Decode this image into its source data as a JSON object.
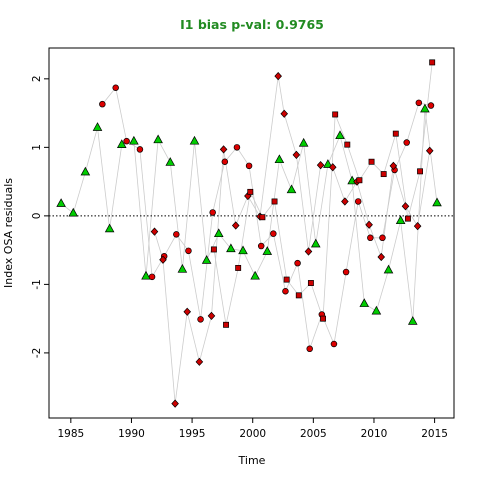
{
  "chart_data": {
    "type": "scatter",
    "title": "I1 bias p-val: 0.9765",
    "title_color": "#228B22",
    "xlabel": "Time",
    "ylabel": "Index OSA residuals",
    "xlim": [
      1983.2,
      2016.6
    ],
    "ylim": [
      -2.95,
      2.45
    ],
    "x_ticks": [
      1985,
      1990,
      1995,
      2000,
      2005,
      2010,
      2015
    ],
    "y_ticks": [
      -2,
      -1,
      0,
      1,
      2
    ],
    "reference_line": {
      "y": 0,
      "style": "dotted"
    },
    "connector_color": "#cccccc",
    "grid": false,
    "legend": "none",
    "series": [
      {
        "marker": "triangle",
        "fill": "#00cc00",
        "points": [
          [
            1984.2,
            0.18
          ],
          [
            1985.2,
            0.04
          ],
          [
            1986.2,
            0.64
          ],
          [
            1987.2,
            1.29
          ],
          [
            1988.2,
            -0.19
          ],
          [
            1989.2,
            1.04
          ],
          [
            1990.2,
            1.09
          ],
          [
            1991.2,
            -0.88
          ],
          [
            1992.2,
            1.11
          ],
          [
            1993.2,
            0.78
          ],
          [
            1994.2,
            -0.78
          ],
          [
            1995.2,
            1.09
          ],
          [
            1996.2,
            -0.65
          ],
          [
            1997.2,
            -0.26
          ],
          [
            1998.2,
            -0.48
          ],
          [
            1999.2,
            -0.51
          ],
          [
            2000.2,
            -0.88
          ],
          [
            2001.2,
            -0.52
          ],
          [
            2002.2,
            0.82
          ],
          [
            2003.2,
            0.38
          ],
          [
            2004.2,
            1.06
          ],
          [
            2005.2,
            -0.41
          ],
          [
            2006.2,
            0.75
          ],
          [
            2007.2,
            1.17
          ],
          [
            2008.2,
            0.51
          ],
          [
            2009.2,
            -1.28
          ],
          [
            2010.2,
            -1.39
          ],
          [
            2011.2,
            -0.79
          ],
          [
            2012.2,
            -0.07
          ],
          [
            2013.2,
            -1.54
          ],
          [
            2014.2,
            1.56
          ],
          [
            2015.2,
            0.19
          ]
        ]
      },
      {
        "marker": "circle",
        "fill": "#dd0000",
        "points": [
          [
            1987.6,
            1.63
          ],
          [
            1988.7,
            1.87
          ],
          [
            1989.6,
            1.09
          ],
          [
            1990.7,
            0.97
          ],
          [
            1991.7,
            -0.89
          ],
          [
            1992.7,
            -0.59
          ],
          [
            1993.7,
            -0.27
          ],
          [
            1994.7,
            -0.51
          ],
          [
            1995.7,
            -1.51
          ],
          [
            1996.7,
            0.05
          ],
          [
            1997.7,
            0.79
          ],
          [
            1998.7,
            1.0
          ],
          [
            1999.7,
            0.73
          ],
          [
            2000.7,
            -0.44
          ],
          [
            2001.7,
            -0.26
          ],
          [
            2002.7,
            -1.1
          ],
          [
            2003.7,
            -0.69
          ],
          [
            2004.7,
            -1.94
          ],
          [
            2005.7,
            -1.44
          ],
          [
            2006.7,
            -1.87
          ],
          [
            2007.7,
            -0.82
          ],
          [
            2008.7,
            0.21
          ],
          [
            2009.7,
            -0.32
          ],
          [
            2010.7,
            -0.32
          ],
          [
            2011.7,
            0.67
          ],
          [
            2012.7,
            1.07
          ],
          [
            2013.7,
            1.65
          ],
          [
            2014.7,
            1.61
          ]
        ]
      },
      {
        "marker": "diamond",
        "fill": "#cc0000",
        "points": [
          [
            1991.9,
            -0.23
          ],
          [
            1992.6,
            -0.64
          ],
          [
            1993.6,
            -2.74
          ],
          [
            1994.6,
            -1.4
          ],
          [
            1995.6,
            -2.13
          ],
          [
            1996.6,
            -1.46
          ],
          [
            1997.6,
            0.97
          ],
          [
            1998.6,
            -0.14
          ],
          [
            1999.6,
            0.29
          ],
          [
            2000.6,
            -0.01
          ],
          [
            2002.6,
            1.49
          ],
          [
            2003.6,
            0.89
          ],
          [
            2004.6,
            -0.52
          ],
          [
            2005.6,
            0.74
          ],
          [
            2006.6,
            0.71
          ],
          [
            2007.6,
            0.21
          ],
          [
            2008.6,
            0.5
          ],
          [
            2009.6,
            -0.13
          ],
          [
            2010.6,
            -0.6
          ],
          [
            2011.6,
            0.73
          ],
          [
            2012.6,
            0.14
          ],
          [
            2013.6,
            -0.15
          ],
          [
            2014.6,
            0.95
          ],
          [
            2002.1,
            2.04
          ]
        ]
      },
      {
        "marker": "square",
        "fill": "#cc0000",
        "points": [
          [
            1996.8,
            -0.49
          ],
          [
            1997.8,
            -1.59
          ],
          [
            1998.8,
            -0.76
          ],
          [
            1999.8,
            0.35
          ],
          [
            2000.8,
            -0.02
          ],
          [
            2001.8,
            0.21
          ],
          [
            2002.8,
            -0.93
          ],
          [
            2003.8,
            -1.16
          ],
          [
            2004.8,
            -0.98
          ],
          [
            2005.8,
            -1.5
          ],
          [
            2006.8,
            1.48
          ],
          [
            2007.8,
            1.04
          ],
          [
            2008.8,
            0.52
          ],
          [
            2009.8,
            0.79
          ],
          [
            2010.8,
            0.61
          ],
          [
            2011.8,
            1.2
          ],
          [
            2012.8,
            -0.04
          ],
          [
            2013.8,
            0.65
          ],
          [
            2014.8,
            2.24
          ]
        ]
      }
    ]
  }
}
